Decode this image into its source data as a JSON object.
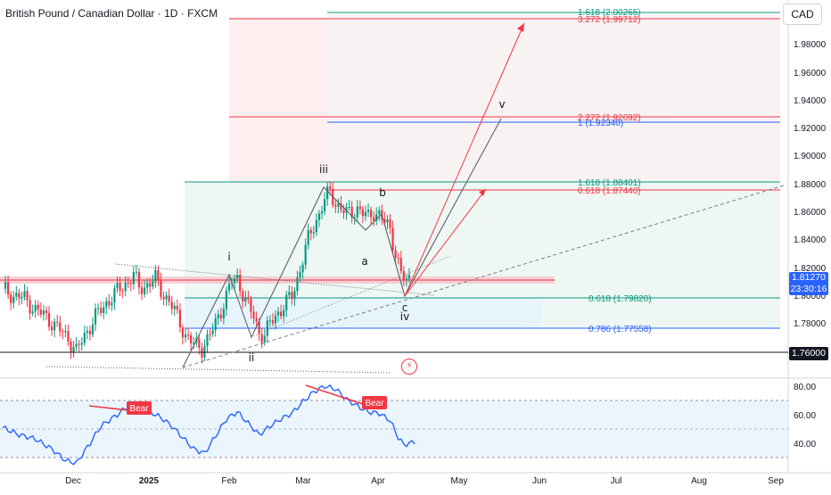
{
  "header": {
    "title": "British Pound / Canadian Dollar · 1D · FXCM",
    "currency": "CAD"
  },
  "chart_data": [
    {
      "type": "candlestick",
      "symbol": "GBPCAD",
      "timeframe": "1D",
      "x_ticks": [
        "Dec",
        "2025",
        "Feb",
        "Mar",
        "Apr",
        "May",
        "Jun",
        "Jul",
        "Aug",
        "Sep"
      ],
      "y_ticks": [
        "1.98000",
        "1.96000",
        "1.94000",
        "1.92000",
        "1.90000",
        "1.88000",
        "1.86000",
        "1.84000",
        "1.82000",
        "1.80000",
        "1.78000"
      ],
      "ylim": [
        1.742,
        2.006
      ],
      "last_price": "1.81270",
      "countdown": "23:30:16",
      "horizontal_level": "1.76000",
      "close_path": [
        [
          0,
          1.805
        ],
        [
          4,
          1.8
        ],
        [
          8,
          1.798
        ],
        [
          12,
          1.79
        ],
        [
          16,
          1.785
        ],
        [
          20,
          1.777
        ],
        [
          24,
          1.77
        ],
        [
          27,
          1.76
        ],
        [
          30,
          1.772
        ],
        [
          34,
          1.785
        ],
        [
          38,
          1.795
        ],
        [
          42,
          1.803
        ],
        [
          46,
          1.81
        ],
        [
          48,
          1.815
        ],
        [
          50,
          1.805
        ],
        [
          53,
          1.808
        ],
        [
          56,
          1.812
        ],
        [
          58,
          1.804
        ],
        [
          61,
          1.796
        ],
        [
          64,
          1.785
        ],
        [
          67,
          1.772
        ],
        [
          70,
          1.765
        ],
        [
          73,
          1.763
        ],
        [
          76,
          1.772
        ],
        [
          78,
          1.78
        ],
        [
          80,
          1.79
        ],
        [
          82,
          1.8
        ],
        [
          84,
          1.81
        ],
        [
          86,
          1.812
        ],
        [
          88,
          1.802
        ],
        [
          90,
          1.792
        ],
        [
          92,
          1.785
        ],
        [
          94,
          1.774
        ],
        [
          96,
          1.772
        ],
        [
          98,
          1.78
        ],
        [
          100,
          1.786
        ],
        [
          102,
          1.79
        ],
        [
          104,
          1.795
        ],
        [
          106,
          1.8
        ],
        [
          108,
          1.812
        ],
        [
          110,
          1.826
        ],
        [
          112,
          1.84
        ],
        [
          114,
          1.85
        ],
        [
          116,
          1.858
        ],
        [
          118,
          1.868
        ],
        [
          120,
          1.874
        ],
        [
          122,
          1.866
        ],
        [
          124,
          1.862
        ],
        [
          126,
          1.858
        ],
        [
          128,
          1.86
        ],
        [
          130,
          1.862
        ],
        [
          132,
          1.858
        ],
        [
          134,
          1.856
        ],
        [
          136,
          1.86
        ],
        [
          138,
          1.857
        ],
        [
          140,
          1.852
        ],
        [
          142,
          1.848
        ],
        [
          144,
          1.83
        ],
        [
          146,
          1.815
        ],
        [
          148,
          1.81
        ],
        [
          149,
          1.8127
        ]
      ],
      "annotations": {
        "wave_labels": [
          "i",
          "ii",
          "iii",
          "iv",
          "v",
          "a",
          "b",
          "c"
        ],
        "fib_levels": [
          {
            "label": "1.618 (2.00265)",
            "color": "#089981"
          },
          {
            "label": "3.272 (1.99712)",
            "color": "#f23645"
          },
          {
            "label": "2.272 (1.92692)",
            "color": "#f23645"
          },
          {
            "label": "1 (1.92340)",
            "color": "#2962ff"
          },
          {
            "label": "1.618 (1.88401)",
            "color": "#089981"
          },
          {
            "label": "0.618 (1.87440)",
            "color": "#f23645"
          },
          {
            "label": "0.618 (1.79820)",
            "color": "#089981"
          },
          {
            "label": "0.786 (1.77558)",
            "color": "#2962ff"
          }
        ]
      }
    },
    {
      "type": "line",
      "indicator": "RSI",
      "y_ticks": [
        "80.00",
        "60.00",
        "40.00"
      ],
      "ylim": [
        24,
        84
      ],
      "band": [
        30,
        70
      ],
      "divergence_labels": [
        "Bear",
        "Bear"
      ],
      "values": [
        [
          0,
          51
        ],
        [
          6,
          46
        ],
        [
          12,
          43
        ],
        [
          18,
          36
        ],
        [
          23,
          28
        ],
        [
          27,
          26
        ],
        [
          32,
          40
        ],
        [
          36,
          52
        ],
        [
          42,
          60
        ],
        [
          46,
          66
        ],
        [
          50,
          66
        ],
        [
          54,
          62
        ],
        [
          58,
          58
        ],
        [
          62,
          52
        ],
        [
          66,
          44
        ],
        [
          70,
          36
        ],
        [
          74,
          33
        ],
        [
          78,
          45
        ],
        [
          82,
          57
        ],
        [
          86,
          62
        ],
        [
          90,
          54
        ],
        [
          94,
          46
        ],
        [
          98,
          52
        ],
        [
          102,
          57
        ],
        [
          106,
          61
        ],
        [
          110,
          69
        ],
        [
          114,
          76
        ],
        [
          118,
          80
        ],
        [
          122,
          78
        ],
        [
          126,
          71
        ],
        [
          130,
          66
        ],
        [
          134,
          62
        ],
        [
          138,
          61
        ],
        [
          142,
          56
        ],
        [
          145,
          44
        ],
        [
          147,
          39
        ],
        [
          149,
          40
        ],
        [
          151,
          41
        ]
      ]
    }
  ],
  "colors": {
    "up": "#089981",
    "down": "#f23645",
    "rsi": "#2962ff",
    "band_fill": "#e3f2fd"
  },
  "icons": {
    "flash": "lightning-circle-icon"
  }
}
